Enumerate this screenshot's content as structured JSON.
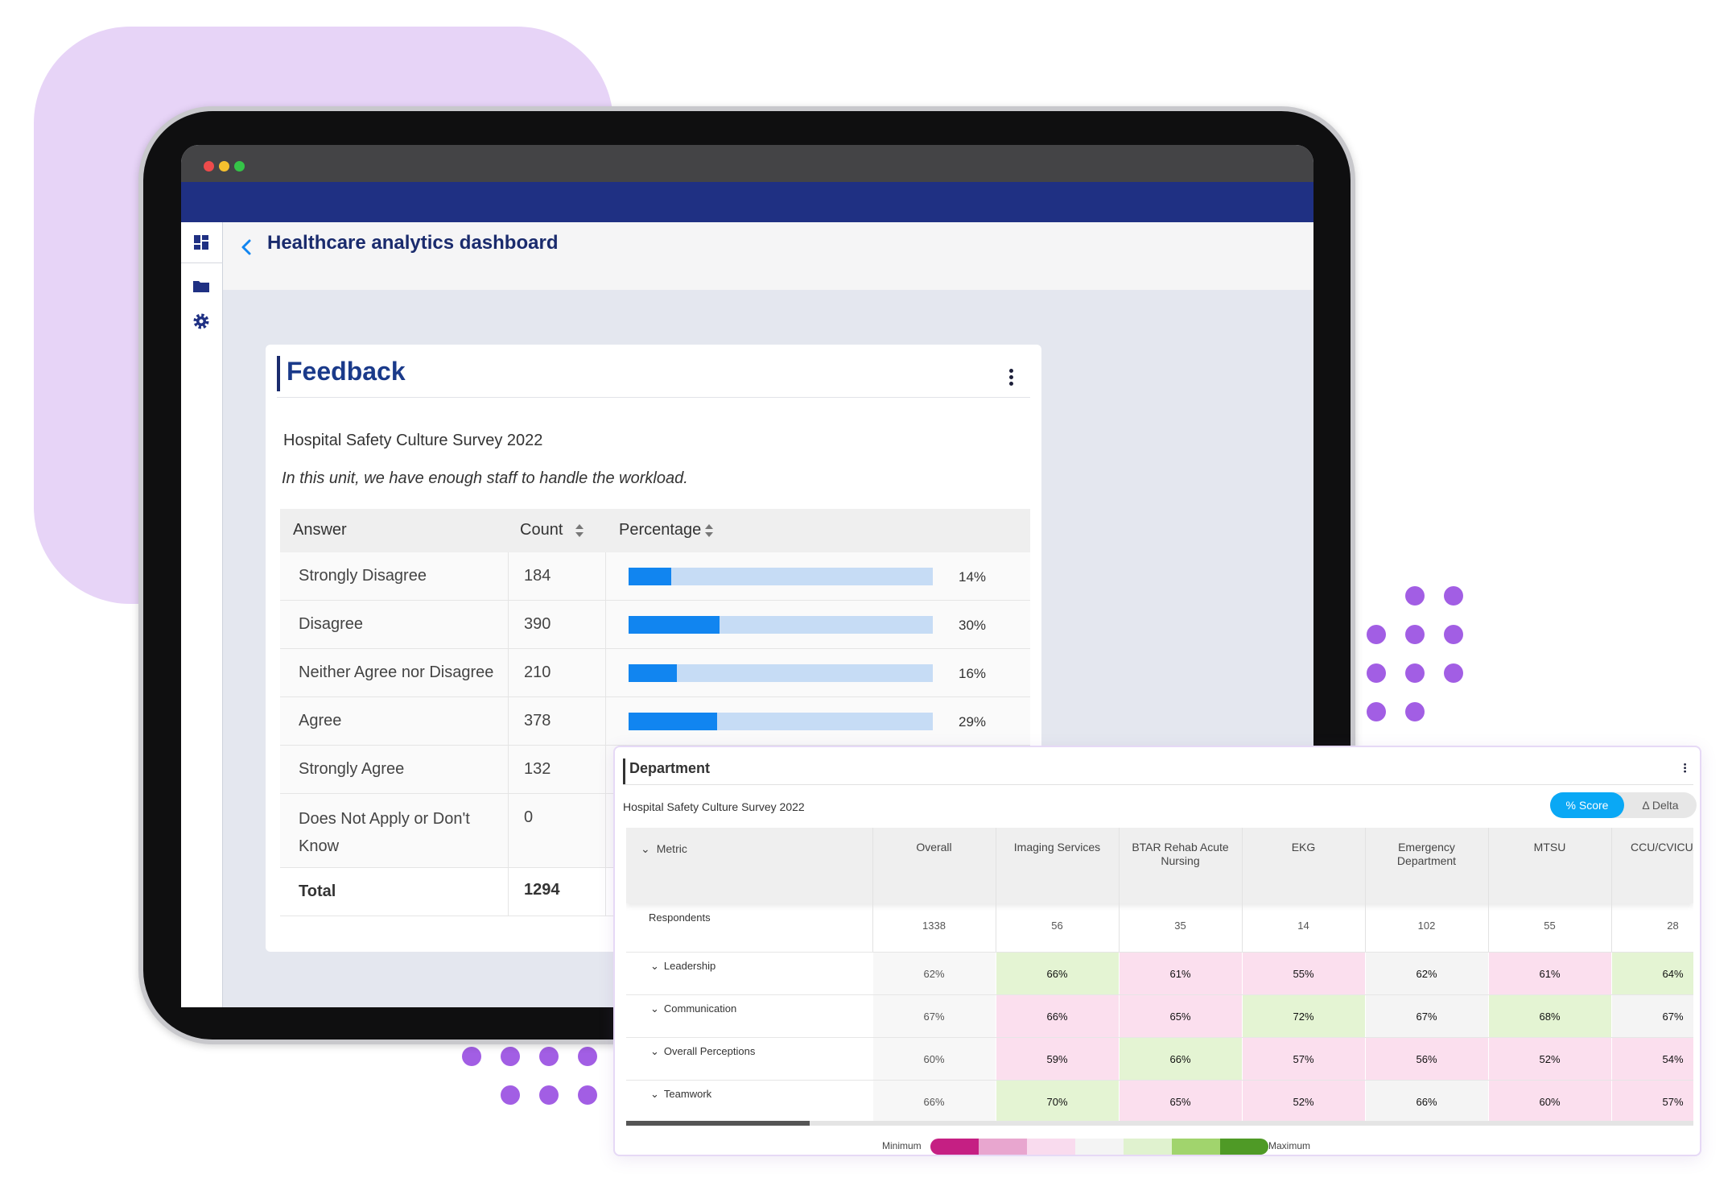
{
  "app": {
    "title": "Healthcare analytics dashboard",
    "icons": [
      "dashboard-icon",
      "folder-icon",
      "gear-icon",
      "chevron-left-icon"
    ]
  },
  "feedback": {
    "title": "Feedback",
    "survey": "Hospital Safety Culture Survey 2022",
    "question": "In this unit, we have enough staff to handle the workload.",
    "columns": [
      "Answer",
      "Count",
      "Percentage"
    ],
    "rows": [
      {
        "answer": "Strongly Disagree",
        "count": "184",
        "pct": "14%",
        "fraction": 0.14
      },
      {
        "answer": "Disagree",
        "count": "390",
        "pct": "30%",
        "fraction": 0.3
      },
      {
        "answer": "Neither Agree nor Disagree",
        "count": "210",
        "pct": "16%",
        "fraction": 0.16
      },
      {
        "answer": "Agree",
        "count": "378",
        "pct": "29%",
        "fraction": 0.29
      },
      {
        "answer": "Strongly Agree",
        "count": "132"
      },
      {
        "answer": "Does Not Apply or Don't Know",
        "count": "0"
      }
    ],
    "total": {
      "label": "Total",
      "count": "1294"
    }
  },
  "department": {
    "title": "Department",
    "survey": "Hospital Safety Culture Survey 2022",
    "toggle": {
      "score": "% Score",
      "delta": "Δ Delta"
    },
    "columns": [
      "Metric",
      "Overall",
      "Imaging Services",
      "BTAR Rehab Acute Nursing",
      "EKG",
      "Emergency Department",
      "MTSU",
      "CCU/CVICU/I on"
    ],
    "respondents": {
      "label": "Respondents",
      "values": [
        "1338",
        "56",
        "35",
        "14",
        "102",
        "55",
        "28"
      ]
    },
    "metrics": [
      {
        "label": "Leadership",
        "values": [
          "62%",
          "66%",
          "61%",
          "55%",
          "62%",
          "61%",
          "64%"
        ],
        "tones": [
          "none",
          "green",
          "pink",
          "pink",
          "neutral",
          "pink",
          "green"
        ]
      },
      {
        "label": "Communication",
        "values": [
          "67%",
          "66%",
          "65%",
          "72%",
          "67%",
          "68%",
          "67%"
        ],
        "tones": [
          "none",
          "pink",
          "pink",
          "green",
          "neutral",
          "green",
          "neutral"
        ]
      },
      {
        "label": "Overall Perceptions",
        "values": [
          "60%",
          "59%",
          "66%",
          "57%",
          "56%",
          "52%",
          "54%"
        ],
        "tones": [
          "none",
          "pink",
          "green",
          "pink",
          "pink",
          "pink",
          "pink"
        ]
      },
      {
        "label": "Teamwork",
        "values": [
          "66%",
          "70%",
          "65%",
          "52%",
          "66%",
          "60%",
          "57%"
        ],
        "tones": [
          "none",
          "green",
          "pink",
          "pink",
          "neutral",
          "pink",
          "pink"
        ]
      }
    ],
    "legend": {
      "min": "Minimum",
      "max": "Maximum",
      "colors": [
        "#c51f83",
        "#e8a6cf",
        "#f9dbee",
        "#f4f4f4",
        "#e0f2cf",
        "#a1d46d",
        "#4f9a26"
      ]
    }
  },
  "colors": {
    "navy": "#1f3083",
    "accent_blue": "#1185f0",
    "dot_purple": "#a25ee4",
    "pink_cell": "#fbdfee",
    "green_cell": "#e4f4d3"
  }
}
